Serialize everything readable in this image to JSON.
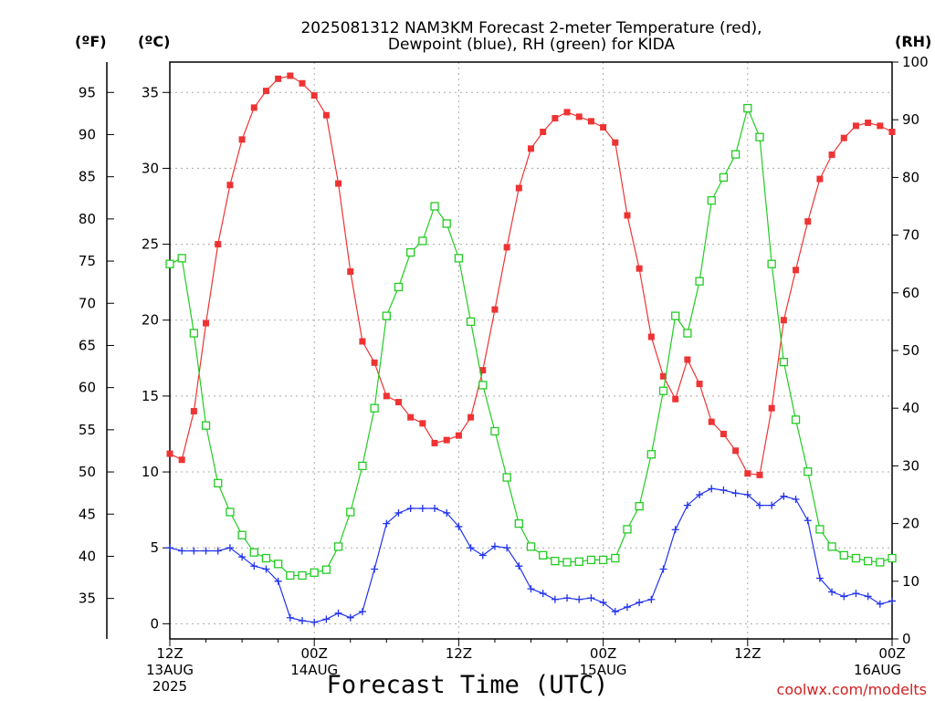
{
  "chart_data": {
    "type": "line",
    "title_line1": "2025081312 NAM3KM Forecast 2-meter Temperature (red),",
    "title_line2": "Dewpoint (blue), RH (green) for KIDA",
    "xlabel": "Forecast Time (UTC)",
    "credit": "coolwx.com/modelts",
    "units": {
      "f": "(ºF)",
      "c": "(ºC)",
      "rh": "(RH)"
    },
    "x_hours": [
      0,
      1,
      2,
      3,
      4,
      5,
      6,
      7,
      8,
      9,
      10,
      11,
      12,
      13,
      14,
      15,
      16,
      17,
      18,
      19,
      20,
      21,
      22,
      23,
      24,
      25,
      26,
      27,
      28,
      29,
      30,
      31,
      32,
      33,
      34,
      35,
      36,
      37,
      38,
      39,
      40,
      41,
      42,
      43,
      44,
      45,
      46,
      47,
      48,
      49,
      50,
      51,
      52,
      53,
      54,
      55,
      56,
      57,
      58,
      59,
      60
    ],
    "xlim": [
      0,
      60
    ],
    "x_ticks": [
      {
        "hour": 0,
        "lines": [
          "12Z",
          "13AUG",
          "2025"
        ]
      },
      {
        "hour": 12,
        "lines": [
          "00Z",
          "14AUG"
        ]
      },
      {
        "hour": 24,
        "lines": [
          "12Z"
        ]
      },
      {
        "hour": 36,
        "lines": [
          "00Z",
          "15AUG"
        ]
      },
      {
        "hour": 48,
        "lines": [
          "12Z"
        ]
      },
      {
        "hour": 60,
        "lines": [
          "00Z",
          "16AUG"
        ]
      }
    ],
    "ylim_c": [
      -1,
      37
    ],
    "y_ticks_c": [
      0,
      5,
      10,
      15,
      20,
      25,
      30,
      35
    ],
    "y_ticks_f": [
      35,
      40,
      45,
      50,
      55,
      60,
      65,
      70,
      75,
      80,
      85,
      90,
      95
    ],
    "ylim_rh": [
      0,
      100
    ],
    "y_ticks_rh": [
      0,
      10,
      20,
      30,
      40,
      50,
      60,
      70,
      80,
      90,
      100
    ],
    "series": [
      {
        "name": "Temperature",
        "color": "#ee3333",
        "marker": "filled-square",
        "units": "C",
        "values": [
          11.2,
          10.8,
          14.0,
          19.8,
          25.0,
          28.9,
          31.9,
          34.0,
          35.1,
          35.9,
          36.1,
          35.6,
          34.8,
          33.5,
          29.0,
          23.2,
          18.6,
          17.2,
          15.0,
          14.6,
          13.6,
          13.2,
          11.9,
          12.1,
          12.4,
          13.6,
          16.7,
          20.7,
          24.8,
          28.7,
          31.3,
          32.4,
          33.3,
          33.7,
          33.4,
          33.1,
          32.7,
          31.7,
          26.9,
          23.4,
          18.9,
          16.3,
          14.8,
          17.4,
          15.8,
          13.3,
          12.5,
          11.4,
          9.9,
          9.8,
          14.2,
          20.0,
          23.3,
          26.5,
          29.3,
          30.9,
          32.0,
          32.8,
          33.0,
          32.8,
          32.4
        ]
      },
      {
        "name": "Dewpoint",
        "color": "#2233ee",
        "marker": "plus",
        "units": "C",
        "values": [
          5.0,
          4.8,
          4.8,
          4.8,
          4.8,
          5.0,
          4.4,
          3.8,
          3.6,
          2.8,
          0.4,
          0.2,
          0.1,
          0.3,
          0.7,
          0.4,
          0.8,
          3.6,
          6.6,
          7.3,
          7.6,
          7.6,
          7.6,
          7.3,
          6.4,
          5.0,
          4.5,
          5.1,
          5.0,
          3.8,
          2.3,
          2.0,
          1.6,
          1.7,
          1.6,
          1.7,
          1.4,
          0.8,
          1.1,
          1.4,
          1.6,
          3.6,
          6.2,
          7.8,
          8.5,
          8.9,
          8.8,
          8.6,
          8.5,
          7.8,
          7.8,
          8.4,
          8.2,
          6.8,
          3.0,
          2.1,
          1.8,
          2.0,
          1.8,
          1.3,
          1.5
        ]
      },
      {
        "name": "RH",
        "color": "#22cc22",
        "marker": "open-square",
        "units": "%",
        "values": [
          65,
          66,
          53,
          37,
          27,
          22,
          18,
          15,
          14,
          13,
          11,
          11,
          11.5,
          12,
          16,
          22,
          30,
          40,
          56,
          61,
          67,
          69,
          75,
          72,
          66,
          55,
          44,
          36,
          28,
          20,
          16,
          14.5,
          13.5,
          13.3,
          13.4,
          13.7,
          13.7,
          14,
          19,
          23,
          32,
          43,
          56,
          53,
          62,
          76,
          80,
          84,
          92,
          87,
          65,
          48,
          38,
          29,
          19,
          16,
          14.5,
          14,
          13.5,
          13.3,
          14
        ]
      }
    ]
  }
}
